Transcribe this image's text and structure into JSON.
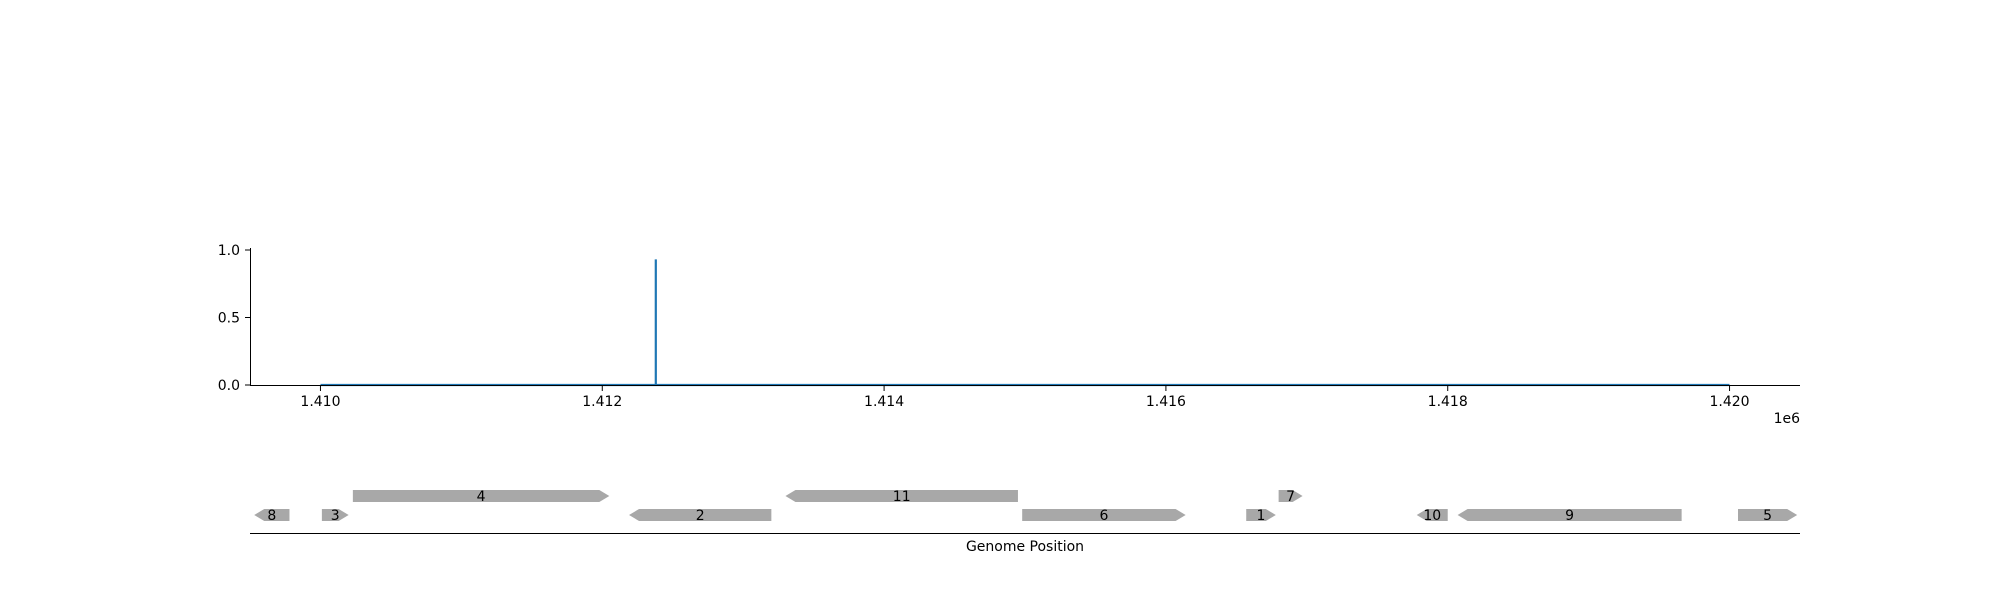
{
  "chart_data": [
    {
      "type": "line",
      "title": "",
      "xlabel": "",
      "ylabel": "",
      "offset_label": "1e6",
      "xlim": [
        1409500,
        1420500
      ],
      "ylim": [
        0.0,
        1.0
      ],
      "x_ticks": [
        1410000,
        1412000,
        1414000,
        1416000,
        1418000,
        1420000
      ],
      "x_tick_labels": [
        "1.410",
        "1.412",
        "1.414",
        "1.416",
        "1.418",
        "1.420"
      ],
      "y_ticks": [
        0.0,
        0.5,
        1.0
      ],
      "y_tick_labels": [
        "0.0",
        "0.5",
        "1.0"
      ],
      "grid": false,
      "series": [
        {
          "color": "#1f77b4",
          "x": [
            1410000,
            1412380,
            1412380,
            1412380,
            1420000
          ],
          "y": [
            0.0,
            0.0,
            0.93,
            0.0,
            0.0
          ]
        }
      ]
    },
    {
      "type": "gene-track",
      "xlabel": "Genome Position",
      "xlim": [
        1409500,
        1420500
      ],
      "color": "#a8a8a8",
      "genes": [
        {
          "label": "8",
          "start": 1409530,
          "end": 1409780,
          "strand": "-",
          "row": 0
        },
        {
          "label": "3",
          "start": 1410010,
          "end": 1410200,
          "strand": "+",
          "row": 0
        },
        {
          "label": "4",
          "start": 1410230,
          "end": 1412050,
          "strand": "+",
          "row": 1
        },
        {
          "label": "2",
          "start": 1412190,
          "end": 1413200,
          "strand": "-",
          "row": 0
        },
        {
          "label": "11",
          "start": 1413300,
          "end": 1414950,
          "strand": "-",
          "row": 1
        },
        {
          "label": "6",
          "start": 1414980,
          "end": 1416140,
          "strand": "+",
          "row": 0
        },
        {
          "label": "1",
          "start": 1416570,
          "end": 1416780,
          "strand": "+",
          "row": 0
        },
        {
          "label": "7",
          "start": 1416800,
          "end": 1416970,
          "strand": "+",
          "row": 1
        },
        {
          "label": "10",
          "start": 1417780,
          "end": 1418000,
          "strand": "-",
          "row": 0
        },
        {
          "label": "9",
          "start": 1418070,
          "end": 1419660,
          "strand": "-",
          "row": 0
        },
        {
          "label": "5",
          "start": 1420060,
          "end": 1420480,
          "strand": "+",
          "row": 0
        }
      ]
    }
  ]
}
